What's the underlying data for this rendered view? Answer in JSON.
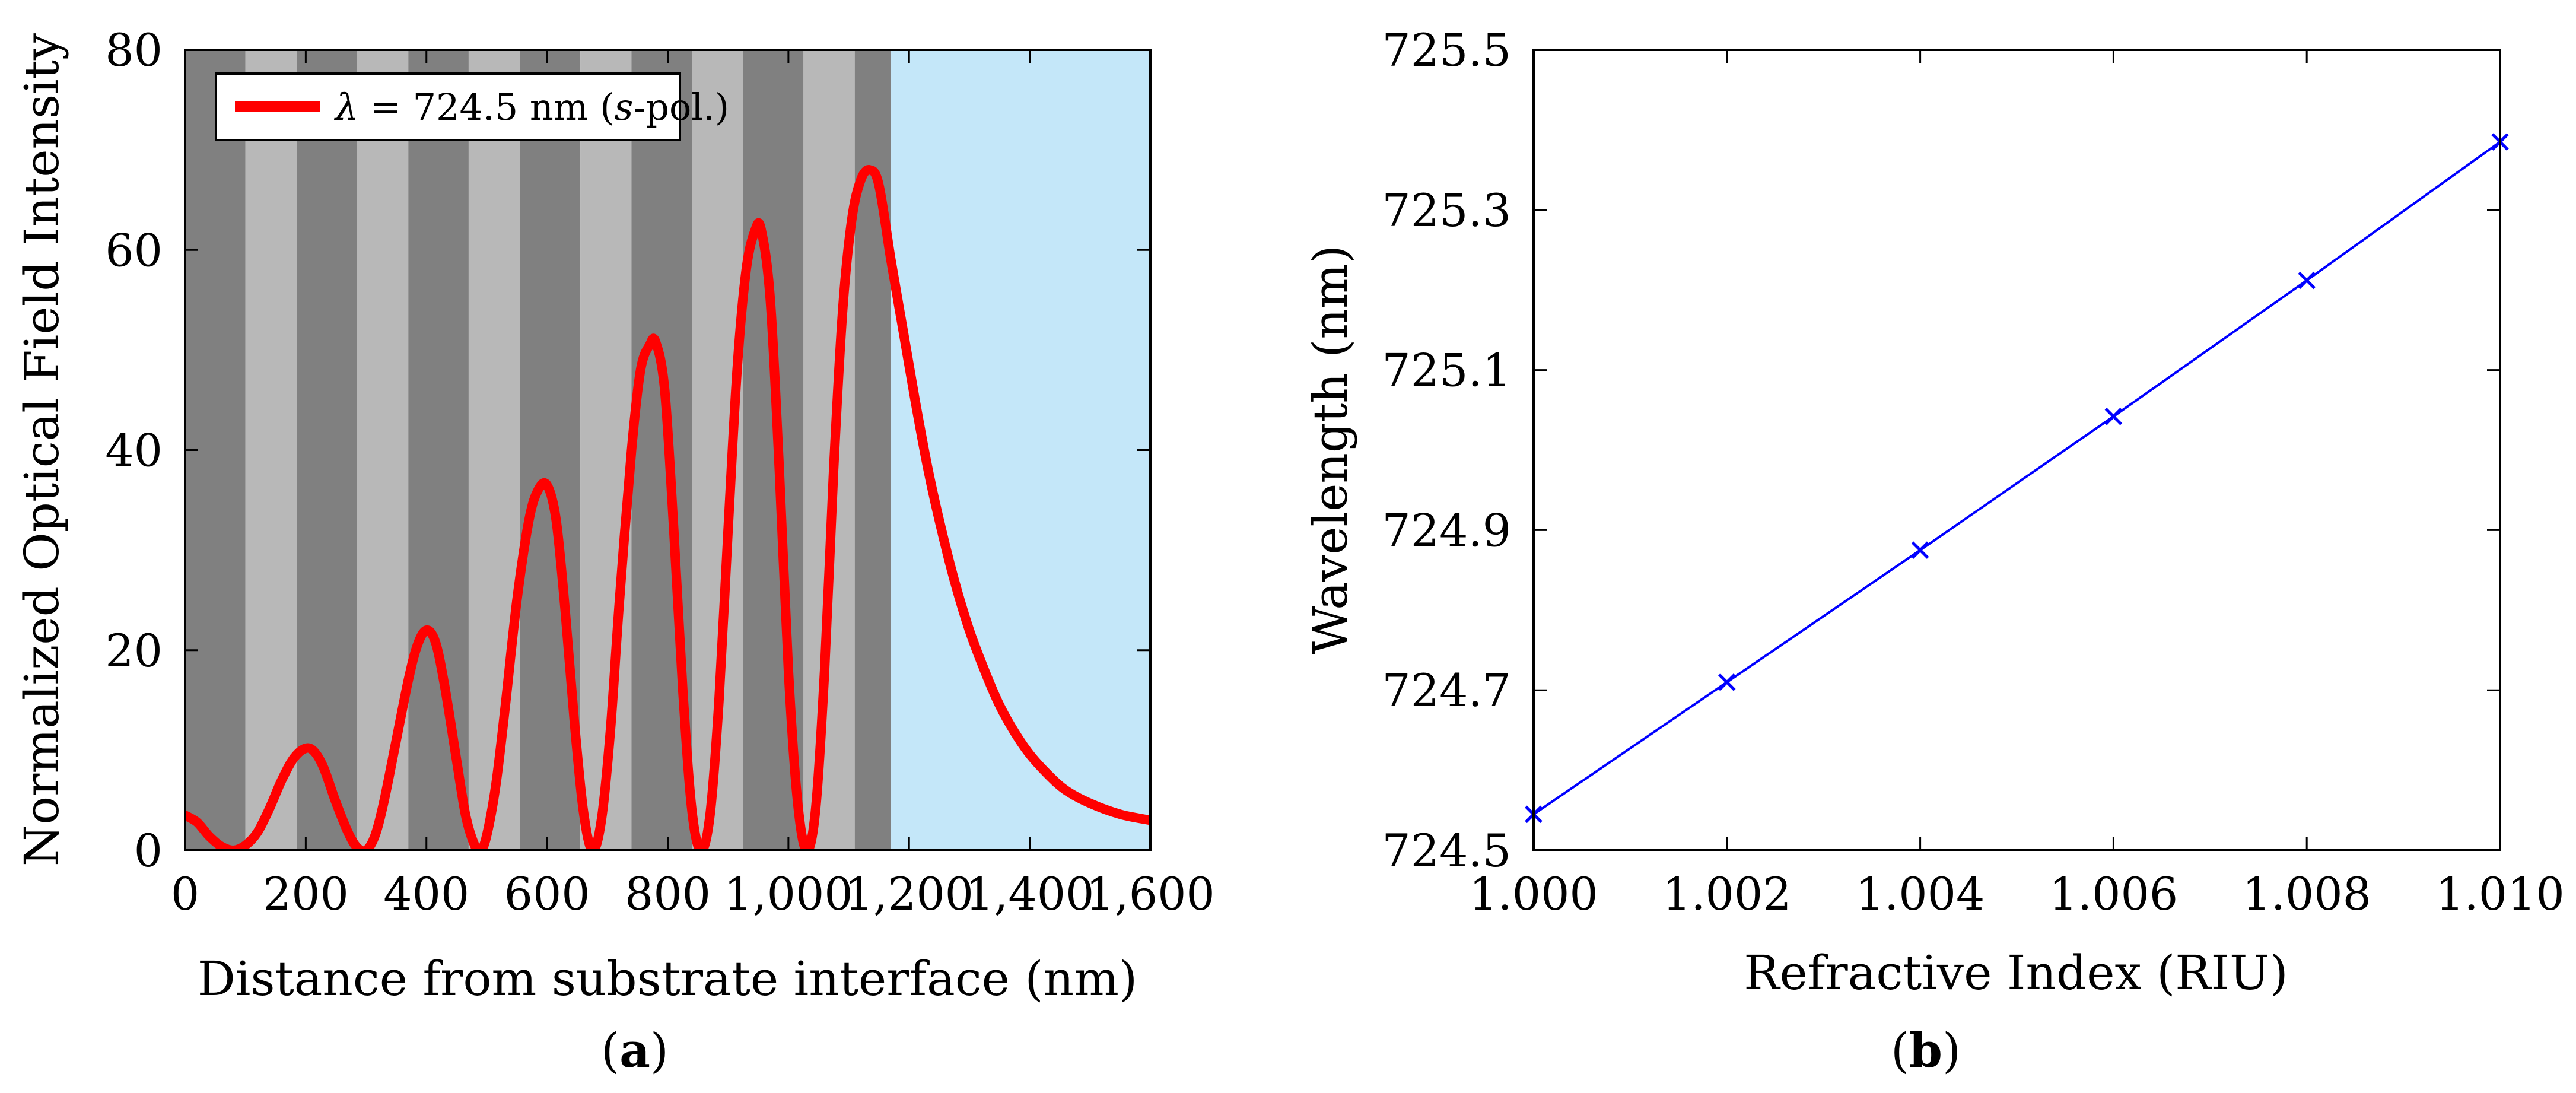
{
  "figure": {
    "panels": [
      {
        "label_open": "(",
        "label_letter": "a",
        "label_close": ")"
      },
      {
        "label_open": "(",
        "label_letter": "b",
        "label_close": ")"
      }
    ]
  },
  "colors": {
    "dark_layer": "#808080",
    "light_layer": "#b8b8b8",
    "analyte": "#c4e7f9",
    "curve_a": "#ff0000",
    "curve_b": "#0000ff"
  },
  "chart_data": [
    {
      "type": "line",
      "title": "",
      "xlabel": "Distance from substrate interface (nm)",
      "ylabel": "Normalized Optical Field Intensity",
      "xlim": [
        0,
        1600
      ],
      "ylim": [
        0,
        80
      ],
      "xticks": [
        0,
        200,
        400,
        600,
        800,
        1000,
        1200,
        1400,
        1600
      ],
      "xtick_labels": [
        "0",
        "200",
        "400",
        "600",
        "800",
        "1,000",
        "1,200",
        "1,400",
        "1,600"
      ],
      "yticks": [
        0,
        20,
        40,
        60,
        80
      ],
      "ytick_labels": [
        "0",
        "20",
        "40",
        "60",
        "80"
      ],
      "legend": {
        "position": "top-left",
        "parts": [
          "λ",
          " = 724.5 nm (",
          "s",
          "-pol.)"
        ]
      },
      "background_layers": [
        {
          "kind": "dark",
          "x0": 0,
          "x1": 100
        },
        {
          "kind": "light",
          "x0": 100,
          "x1": 185
        },
        {
          "kind": "dark",
          "x0": 185,
          "x1": 285
        },
        {
          "kind": "light",
          "x0": 285,
          "x1": 370
        },
        {
          "kind": "dark",
          "x0": 370,
          "x1": 470
        },
        {
          "kind": "light",
          "x0": 470,
          "x1": 555
        },
        {
          "kind": "dark",
          "x0": 555,
          "x1": 655
        },
        {
          "kind": "light",
          "x0": 655,
          "x1": 740
        },
        {
          "kind": "dark",
          "x0": 740,
          "x1": 840
        },
        {
          "kind": "light",
          "x0": 840,
          "x1": 925
        },
        {
          "kind": "dark",
          "x0": 925,
          "x1": 1025
        },
        {
          "kind": "light",
          "x0": 1025,
          "x1": 1110
        },
        {
          "kind": "dark",
          "x0": 1110,
          "x1": 1170
        },
        {
          "kind": "analyte",
          "x0": 1170,
          "x1": 1600
        }
      ],
      "series": [
        {
          "name": "λ = 724.5 nm (s-pol.)",
          "points": [
            [
              0,
              3.5
            ],
            [
              20,
              2.8
            ],
            [
              40,
              1.4
            ],
            [
              60,
              0.4
            ],
            [
              80,
              0.0
            ],
            [
              100,
              0.5
            ],
            [
              120,
              1.8
            ],
            [
              140,
              4.2
            ],
            [
              160,
              7.0
            ],
            [
              180,
              9.2
            ],
            [
              200,
              10.2
            ],
            [
              215,
              9.8
            ],
            [
              230,
              8.2
            ],
            [
              250,
              4.8
            ],
            [
              270,
              1.8
            ],
            [
              285,
              0.3
            ],
            [
              300,
              0.0
            ],
            [
              315,
              1.5
            ],
            [
              330,
              5.0
            ],
            [
              350,
              11.0
            ],
            [
              370,
              17.0
            ],
            [
              385,
              20.5
            ],
            [
              400,
              22.0
            ],
            [
              415,
              20.8
            ],
            [
              430,
              16.5
            ],
            [
              450,
              9.0
            ],
            [
              465,
              3.5
            ],
            [
              480,
              0.5
            ],
            [
              490,
              0.0
            ],
            [
              500,
              1.5
            ],
            [
              515,
              6.5
            ],
            [
              530,
              14.0
            ],
            [
              550,
              25.0
            ],
            [
              570,
              33.0
            ],
            [
              585,
              36.0
            ],
            [
              600,
              36.5
            ],
            [
              615,
              33.0
            ],
            [
              630,
              24.0
            ],
            [
              645,
              13.0
            ],
            [
              660,
              4.0
            ],
            [
              675,
              0.0
            ],
            [
              690,
              3.0
            ],
            [
              705,
              12.0
            ],
            [
              720,
              25.0
            ],
            [
              740,
              40.0
            ],
            [
              755,
              48.0
            ],
            [
              770,
              50.5
            ],
            [
              780,
              50.8
            ],
            [
              795,
              46.0
            ],
            [
              810,
              32.0
            ],
            [
              825,
              16.0
            ],
            [
              840,
              4.0
            ],
            [
              855,
              0.0
            ],
            [
              870,
              3.5
            ],
            [
              885,
              15.0
            ],
            [
              900,
              32.0
            ],
            [
              915,
              48.0
            ],
            [
              930,
              58.0
            ],
            [
              945,
              62.0
            ],
            [
              955,
              62.0
            ],
            [
              970,
              55.0
            ],
            [
              985,
              38.0
            ],
            [
              1000,
              18.0
            ],
            [
              1015,
              5.0
            ],
            [
              1030,
              0.0
            ],
            [
              1045,
              4.0
            ],
            [
              1060,
              18.0
            ],
            [
              1075,
              38.0
            ],
            [
              1090,
              54.0
            ],
            [
              1105,
              63.0
            ],
            [
              1120,
              67.0
            ],
            [
              1135,
              68.0
            ],
            [
              1150,
              66.5
            ],
            [
              1170,
              59.0
            ],
            [
              1190,
              52.0
            ],
            [
              1210,
              45.0
            ],
            [
              1230,
              38.5
            ],
            [
              1250,
              33.0
            ],
            [
              1275,
              27.0
            ],
            [
              1300,
              22.0
            ],
            [
              1325,
              18.0
            ],
            [
              1350,
              14.5
            ],
            [
              1375,
              11.8
            ],
            [
              1400,
              9.6
            ],
            [
              1430,
              7.6
            ],
            [
              1460,
              6.0
            ],
            [
              1500,
              4.7
            ],
            [
              1550,
              3.6
            ],
            [
              1600,
              3.0
            ]
          ]
        }
      ]
    },
    {
      "type": "line",
      "title": "",
      "xlabel": "Refractive Index (RIU)",
      "ylabel": "Wavelength (nm)",
      "xlim": [
        1.0,
        1.01
      ],
      "ylim": [
        724.5,
        725.5
      ],
      "xticks": [
        1.0,
        1.002,
        1.004,
        1.006,
        1.008,
        1.01
      ],
      "xtick_labels": [
        "1.000",
        "1.002",
        "1.004",
        "1.006",
        "1.008",
        "1.010"
      ],
      "yticks": [
        724.5,
        724.7,
        724.9,
        725.1,
        725.3,
        725.5
      ],
      "ytick_labels": [
        "724.5",
        "724.7",
        "724.9",
        "725.1",
        "725.3",
        "725.5"
      ],
      "marker": "x",
      "series": [
        {
          "name": "Wavelength",
          "x": [
            1.0,
            1.002,
            1.004,
            1.006,
            1.008,
            1.01
          ],
          "y": [
            724.545,
            724.71,
            724.875,
            725.042,
            725.212,
            725.385
          ]
        }
      ]
    }
  ]
}
